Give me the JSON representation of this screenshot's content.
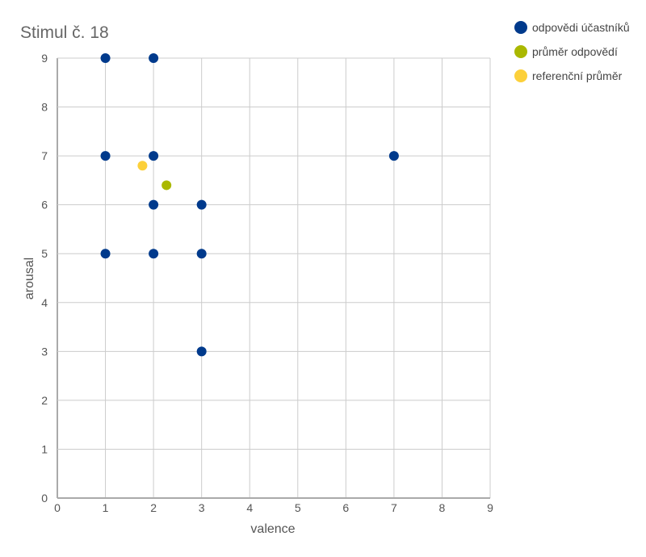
{
  "chart_data": {
    "type": "scatter",
    "title": "Stimul č. 18",
    "xlabel": "valence",
    "ylabel": "arousal",
    "xlim": [
      0,
      9
    ],
    "ylim": [
      0,
      9
    ],
    "xticks": [
      "0",
      "1",
      "2",
      "3",
      "4",
      "5",
      "6",
      "7",
      "8",
      "9"
    ],
    "yticks": [
      "0",
      "1",
      "2",
      "3",
      "4",
      "5",
      "6",
      "7",
      "8",
      "9"
    ],
    "grid": true,
    "legend_position": "top-right",
    "series": [
      {
        "name": "odpovědi účastníků",
        "color": "#003a8c",
        "points": [
          {
            "x": 1,
            "y": 9
          },
          {
            "x": 2,
            "y": 9
          },
          {
            "x": 1,
            "y": 7
          },
          {
            "x": 2,
            "y": 7
          },
          {
            "x": 7,
            "y": 7
          },
          {
            "x": 2,
            "y": 6
          },
          {
            "x": 3,
            "y": 6
          },
          {
            "x": 1,
            "y": 5
          },
          {
            "x": 2,
            "y": 5
          },
          {
            "x": 3,
            "y": 5
          },
          {
            "x": 3,
            "y": 3
          }
        ]
      },
      {
        "name": "průměr odpovědí",
        "color": "#aab800",
        "points": [
          {
            "x": 2.27,
            "y": 6.4
          }
        ]
      },
      {
        "name": "referenční průměr",
        "color": "#fcd03a",
        "points": [
          {
            "x": 1.77,
            "y": 6.8
          }
        ]
      }
    ]
  }
}
